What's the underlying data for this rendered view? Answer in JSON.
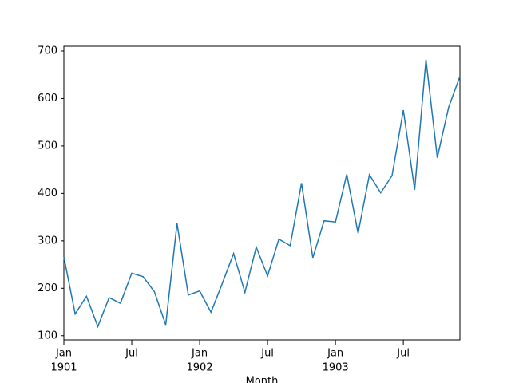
{
  "chart_data": {
    "type": "line",
    "xlabel": "Month",
    "x": [
      "1901-01",
      "1901-02",
      "1901-03",
      "1901-04",
      "1901-05",
      "1901-06",
      "1901-07",
      "1901-08",
      "1901-09",
      "1901-10",
      "1901-11",
      "1901-12",
      "1902-01",
      "1902-02",
      "1902-03",
      "1902-04",
      "1902-05",
      "1902-06",
      "1902-07",
      "1902-08",
      "1902-09",
      "1902-10",
      "1902-11",
      "1902-12",
      "1903-01",
      "1903-02",
      "1903-03",
      "1903-04",
      "1903-05",
      "1903-06",
      "1903-07",
      "1903-08",
      "1903-09",
      "1903-10",
      "1903-11",
      "1903-12"
    ],
    "series": [
      {
        "color": "#1f77b4",
        "values": [
          266.0,
          145.9,
          183.1,
          119.3,
          180.3,
          168.5,
          231.8,
          224.5,
          192.8,
          122.9,
          336.5,
          185.9,
          194.3,
          149.5,
          210.1,
          273.3,
          191.4,
          287.0,
          226.0,
          303.6,
          289.9,
          421.6,
          264.5,
          342.3,
          339.7,
          440.4,
          315.9,
          439.3,
          401.3,
          437.4,
          575.5,
          407.6,
          682.0,
          475.3,
          581.3,
          646.9
        ]
      }
    ],
    "xlim": [
      "1901-01",
      "1903-12"
    ],
    "xticks": [
      {
        "value": "1901-01",
        "label": [
          "Jan",
          "1901"
        ]
      },
      {
        "value": "1901-07",
        "label": [
          "Jul"
        ]
      },
      {
        "value": "1902-01",
        "label": [
          "Jan",
          "1902"
        ]
      },
      {
        "value": "1902-07",
        "label": [
          "Jul"
        ]
      },
      {
        "value": "1903-01",
        "label": [
          "Jan",
          "1903"
        ]
      },
      {
        "value": "1903-07",
        "label": [
          "Jul"
        ]
      }
    ],
    "ylim": [
      91.2,
      710.1
    ],
    "yticks": [
      100,
      200,
      300,
      400,
      500,
      600,
      700
    ]
  }
}
